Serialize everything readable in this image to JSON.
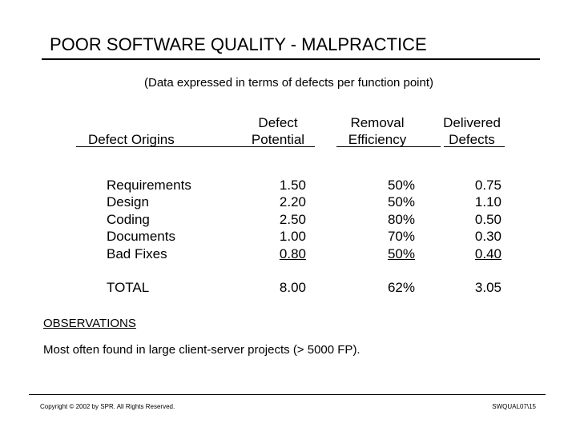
{
  "title": "POOR SOFTWARE QUALITY - MALPRACTICE",
  "subtitle": "(Data expressed in terms of defects per function point)",
  "table": {
    "headers": {
      "origins": "Defect Origins",
      "potential_line1": "Defect",
      "potential_line2": "Potential",
      "removal_line1": "Removal",
      "removal_line2": "Efficiency",
      "delivered_line1": "Delivered",
      "delivered_line2": "Defects"
    },
    "rows": [
      {
        "origin": "Requirements",
        "potential": "1.50",
        "removal": "50%",
        "delivered": "0.75"
      },
      {
        "origin": "Design",
        "potential": "2.20",
        "removal": "50%",
        "delivered": "1.10"
      },
      {
        "origin": "Coding",
        "potential": "2.50",
        "removal": "80%",
        "delivered": "0.50"
      },
      {
        "origin": "Documents",
        "potential": "1.00",
        "removal": "70%",
        "delivered": "0.30"
      },
      {
        "origin": "Bad Fixes",
        "potential": "0.80",
        "removal": "50%",
        "delivered": "0.40"
      }
    ],
    "total": {
      "origin": "TOTAL",
      "potential": "8.00",
      "removal": "62%",
      "delivered": "3.05"
    }
  },
  "observations_label": "OBSERVATIONS",
  "observation": "Most often found in large client-server projects (> 5000 FP).",
  "footer": {
    "copyright": "Copyright © 2002 by SPR.  All Rights Reserved.",
    "slide_id": "SWQUAL07\\15"
  }
}
